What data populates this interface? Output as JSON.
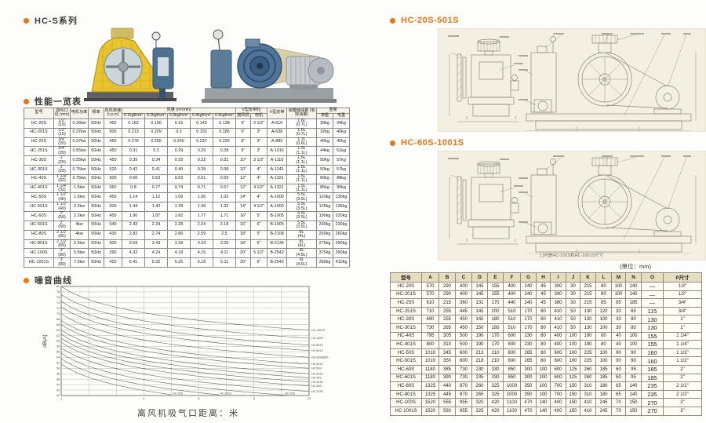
{
  "sections": {
    "series_title": "HC-S系列",
    "perf_title": "性能一览表",
    "noise_title": "噪音曲线",
    "drawing1_title": "HC-20S-501S",
    "drawing2_title": "HC-60S-1001S",
    "drawing2_caption": "[ ]内是HC-100S和HC-1001S尺寸",
    "unit_note": "(单位：mm)"
  },
  "perf_table": {
    "headers": {
      "model": "型号",
      "port": "排风口径 (mm)",
      "power": "电机功率",
      "freq": "频率",
      "speed": "风机转速 (r.p.m)",
      "flow_group": "风量 (m³/min)",
      "pressures": [
        "0.1kgf/cm²",
        "0.2kgf/cm²",
        "0.3kgf/cm²",
        "0.4kgf/cm²",
        "0.5kgf/cm²"
      ],
      "pulley_group": "V型皮带轮",
      "pulley_blower": "鼓风机",
      "pulley_motor": "电机",
      "belt": "V型皮带",
      "oil": "油箱储油量 (有效油量)",
      "weight_group": "重量",
      "net": "净重",
      "gross": "毛重"
    },
    "rows": [
      {
        "model": "HC-20S",
        "port_in": "1/2\"",
        "port_mm": "(15)",
        "power": "0.25kw",
        "freq": "50Hz",
        "speed": "450",
        "flow": [
          "0.162",
          "0.156",
          "0.15",
          "0.143",
          "0.138"
        ],
        "pulley_blower": "6\"",
        "pulley_motor": "2 1/2\"",
        "belt": "A-610",
        "oil_total": "1.6L",
        "oil_effective": "(0.7L)",
        "net": "30kg",
        "gross": "34kg"
      },
      {
        "model": "HC-201S",
        "port_in": "1/2\"",
        "port_mm": "(15)",
        "power": "0.37kw",
        "freq": "50Hz",
        "speed": "600",
        "flow": [
          "0.213",
          "0.209",
          "0.2",
          "0.193",
          "0.185"
        ],
        "pulley_blower": "6\"",
        "pulley_motor": "3\"",
        "belt": "A-638",
        "oil_total": "1.6L",
        "oil_effective": "(0.7L)",
        "net": "32kg",
        "gross": "40kg"
      },
      {
        "model": "HC-25S",
        "port_in": "3/4\"",
        "port_mm": "(20)",
        "power": "0.37kw",
        "freq": "50Hz",
        "speed": "450",
        "flow": [
          "0.278",
          "0.265",
          "0.250",
          "0.237",
          "0.225"
        ],
        "pulley_blower": "8\"",
        "pulley_motor": "3\"",
        "belt": "A-889",
        "oil_total": "1.2L",
        "oil_effective": "(0.6L)",
        "net": "40kg",
        "gross": "45kg"
      },
      {
        "model": "HC-251S",
        "port_in": "3/4\"",
        "port_mm": "(20)",
        "power": "0.55kw",
        "freq": "50Hz",
        "speed": "450",
        "flow": [
          "0.31",
          "0.3",
          "0.29",
          "0.29",
          "0.28"
        ],
        "pulley_blower": "8\"",
        "pulley_motor": "3\"",
        "belt": "A-1016",
        "oil_total": "1.5L",
        "oil_effective": "(1.1L)",
        "net": "44kg",
        "gross": "51kg"
      },
      {
        "model": "HC-30S",
        "port_in": "1\"",
        "port_mm": "(25)",
        "power": "0.55kw",
        "freq": "50Hz",
        "speed": "450",
        "flow": [
          "0.35",
          "0.34",
          "0.33",
          "0.32",
          "0.31"
        ],
        "pulley_blower": "10\"",
        "pulley_motor": "3 1/2\"",
        "belt": "A-1118",
        "oil_total": "1.5L",
        "oil_effective": "(1.1L)",
        "net": "50kg",
        "gross": "57kg"
      },
      {
        "model": "HC-301S",
        "port_in": "1\"",
        "port_mm": "(25)",
        "power": "0.75kw",
        "freq": "50Hz",
        "speed": "520",
        "flow": [
          "0.42",
          "0.41",
          "0.40",
          "0.39",
          "0.38"
        ],
        "pulley_blower": "10\"",
        "pulley_motor": "4\"",
        "belt": "A-1143",
        "oil_total": "1.5L",
        "oil_effective": "(1.1L)",
        "net": "50kg",
        "gross": "57kg"
      },
      {
        "model": "HC-40S",
        "port_in": "1 1/4\"",
        "port_mm": "(32)",
        "power": "0.75kw",
        "freq": "50Hz",
        "speed": "500",
        "flow": [
          "0.66",
          "0.63",
          "0.63",
          "0.61",
          "0.59"
        ],
        "pulley_blower": "12\"",
        "pulley_motor": "4\"",
        "belt": "A-1321",
        "oil_total": "1.5L",
        "oil_effective": "(1.1L)",
        "net": "80kg",
        "gross": "88kg"
      },
      {
        "model": "HC-401S",
        "port_in": "1 1/4\"",
        "port_mm": "(32)",
        "power": "1.5kw",
        "freq": "50Hz",
        "speed": "560",
        "flow": [
          "0.8",
          "0.77",
          "0.74",
          "0.71",
          "0.67"
        ],
        "pulley_blower": "12\"",
        "pulley_motor": "4 1/2\"",
        "belt": "A-1321",
        "oil_total": "1.5L",
        "oil_effective": "(1.1L)",
        "net": "85kg",
        "gross": "95kg"
      },
      {
        "model": "HC-50S",
        "port_in": "1 1/2\"",
        "port_mm": "(40)",
        "power": "1.5kw",
        "freq": "50Hz",
        "speed": "450",
        "flow": [
          "1.14",
          "1.12",
          "1.09",
          "1.06",
          "1.02"
        ],
        "pulley_blower": "14\"",
        "pulley_motor": "4\"",
        "belt": "A-1600",
        "oil_total": "5.5L",
        "oil_effective": "(3.5L)",
        "net": "120kg",
        "gross": "130kg"
      },
      {
        "model": "HC-501S",
        "port_in": "1 1/2\"",
        "port_mm": "(40)",
        "power": "2.2kw",
        "freq": "50Hz",
        "speed": "500",
        "flow": [
          "1.44",
          "1.42",
          "1.39",
          "1.36",
          "1.32"
        ],
        "pulley_blower": "14\"",
        "pulley_motor": "4 1/2\"",
        "belt": "A-1600",
        "oil_total": "5.5L",
        "oil_effective": "(3.5L)",
        "net": "125kg",
        "gross": "135kg"
      },
      {
        "model": "HC-60S",
        "port_in": "2\"",
        "port_mm": "(50)",
        "power": "2.2kw",
        "freq": "50Hz",
        "speed": "450",
        "flow": [
          "1.90",
          "1.87",
          "1.82",
          "1.77",
          "1.71"
        ],
        "pulley_blower": "16\"",
        "pulley_motor": "5\"",
        "belt": "B-1905",
        "oil_total": "5.5L",
        "oil_effective": "(3.5L)",
        "net": "190kg",
        "gross": "220kg"
      },
      {
        "model": "HC-601S",
        "port_in": "2\"",
        "port_mm": "(50)",
        "power": "4kw",
        "freq": "50Hz",
        "speed": "540",
        "flow": [
          "2.43",
          "2.34",
          "2.28",
          "2.24",
          "2.18"
        ],
        "pulley_blower": "16\"",
        "pulley_motor": "6\"",
        "belt": "B-1905",
        "oil_total": "5.5L",
        "oil_effective": "(3.5L)",
        "net": "200kg",
        "gross": "230kg"
      },
      {
        "model": "HC-80S",
        "port_in": "2 1/2\"",
        "port_mm": "(65)",
        "power": "4kw",
        "freq": "50Hz",
        "speed": "430",
        "flow": [
          "2.82",
          "2.74",
          "2.66",
          "2.59",
          "2.5"
        ],
        "pulley_blower": "18\"",
        "pulley_motor": "5\"",
        "belt": "B-2108",
        "oil_total": "8L",
        "oil_effective": "(4L)",
        "net": "250kg",
        "gross": "260kg"
      },
      {
        "model": "HC-801S",
        "port_in": "2 1/2\"",
        "port_mm": "(65)",
        "power": "5.5kw",
        "freq": "50Hz",
        "speed": "500",
        "flow": [
          "3.53",
          "3.43",
          "3.39",
          "3.33",
          "3.29"
        ],
        "pulley_blower": "18\"",
        "pulley_motor": "6\"",
        "belt": "B-2134",
        "oil_total": "8L",
        "oil_effective": "(4L)",
        "net": "275kg",
        "gross": "290kg"
      },
      {
        "model": "HC-100S",
        "port_in": "3\"",
        "port_mm": "(80)",
        "power": "5.5kw",
        "freq": "50Hz",
        "speed": "390",
        "flow": [
          "4.32",
          "4.24",
          "4.18",
          "4.15",
          "4.11"
        ],
        "pulley_blower": "20\"",
        "pulley_motor": "5 1/2\"",
        "belt": "B-2542",
        "oil_total": "9L",
        "oil_effective": "(4.5L)",
        "net": "375kg",
        "gross": "390kg"
      },
      {
        "model": "HC-1001S",
        "port_in": "3\"",
        "port_mm": "(80)",
        "power": "7.5kw",
        "freq": "50Hz",
        "speed": "420",
        "flow": [
          "5.41",
          "5.32",
          "5.25",
          "5.18",
          "5.11"
        ],
        "pulley_blower": "20\"",
        "pulley_motor": "6\"",
        "belt": "B-2542",
        "oil_total": "9L",
        "oil_effective": "(4.5L)",
        "net": "390kg",
        "gross": "410kg"
      }
    ]
  },
  "chart_data": {
    "type": "line",
    "title": "噪音曲线",
    "xlabel": "离风机吸气口距离：米",
    "ylabel": "dB(A)",
    "xlim": [
      1,
      10
    ],
    "ylim": [
      40,
      80
    ],
    "y_tick_step": 2,
    "x_tick_labels": [
      "1",
      "4",
      "6",
      "8",
      "10"
    ],
    "grid": true,
    "legend_position": "right-edge-and-bottom",
    "series_note": "dB(A) noise level vs distance from suction port in meters; values decay ~16 dB per decade",
    "series": [
      {
        "name": "HC-1001S",
        "db_at_1m": 80.0,
        "db_at_10m": 64.0,
        "label": "right"
      },
      {
        "name": "HC-100S",
        "db_at_1m": 77.0,
        "db_at_10m": 61.0,
        "label": "right"
      },
      {
        "name": "HC-801S",
        "db_at_1m": 74.5,
        "db_at_10m": 58.5,
        "label": "right"
      },
      {
        "name": "HC-601S",
        "db_at_1m": 72.5,
        "db_at_10m": 56.5,
        "label": "right"
      },
      {
        "name": "HC-60S&80S",
        "db_at_1m": 70.0,
        "db_at_10m": 54.0,
        "label": "right"
      },
      {
        "name": "HC-501S",
        "db_at_1m": 67.5,
        "db_at_10m": 51.5,
        "label": "right"
      },
      {
        "name": "HC-50S",
        "db_at_1m": 66.0,
        "db_at_10m": 50.0,
        "label": "right"
      },
      {
        "name": "HC-401S",
        "db_at_1m": 64.0,
        "db_at_10m": 48.0,
        "label": "right"
      },
      {
        "name": "HC-40S",
        "db_at_1m": 62.5,
        "db_at_10m": 46.5,
        "label": "right"
      },
      {
        "name": "HC-301S",
        "db_at_1m": 61.0,
        "db_at_10m": 45.0,
        "label": "right"
      },
      {
        "name": "HC-30S",
        "db_at_1m": 59.5,
        "db_at_10m": 43.5,
        "label": "right"
      },
      {
        "name": "HC-251S",
        "db_at_1m": 57.5,
        "db_at_10m": 41.5,
        "label": "right"
      },
      {
        "name": "HC-25S",
        "db_at_1m": 55.5,
        "db_at_10m": 39.5,
        "label": "bottom"
      },
      {
        "name": "HC-201S",
        "db_at_1m": 53.5,
        "db_at_10m": 37.5,
        "label": "bottom"
      },
      {
        "name": "HC-20S",
        "db_at_1m": 51.5,
        "db_at_10m": 35.5,
        "label": "bottom"
      }
    ]
  },
  "dims_table": {
    "headers": [
      "型号",
      "A",
      "B",
      "C",
      "D",
      "E",
      "F",
      "G",
      "H",
      "I",
      "J",
      "K",
      "L",
      "M",
      "N",
      "O",
      "P尺寸"
    ],
    "rows": [
      [
        "HC-20S",
        "570",
        "290",
        "400",
        "145",
        "155",
        "400",
        "240",
        "45",
        "300",
        "30",
        "215",
        "80",
        "100",
        "140",
        "—",
        "1/2\""
      ],
      [
        "HC-201S",
        "570",
        "290",
        "400",
        "145",
        "155",
        "400",
        "240",
        "45",
        "300",
        "30",
        "215",
        "80",
        "100",
        "140",
        "—",
        "1/2\""
      ],
      [
        "HC-25S",
        "610",
        "215",
        "360",
        "131",
        "170",
        "440",
        "240",
        "45",
        "380",
        "30",
        "215",
        "85",
        "85",
        "185",
        "—",
        "3/4\""
      ],
      [
        "HC-251S",
        "710",
        "255",
        "445",
        "145",
        "200",
        "510",
        "170",
        "80",
        "410",
        "50",
        "130",
        "120",
        "30",
        "65",
        "115",
        "3/4\""
      ],
      [
        "HC-30S",
        "690",
        "255",
        "450",
        "145",
        "180",
        "510",
        "170",
        "80",
        "410",
        "50",
        "130",
        "100",
        "30",
        "80",
        "130",
        "1\""
      ],
      [
        "HC-301S",
        "730",
        "265",
        "450",
        "150",
        "180",
        "510",
        "170",
        "80",
        "410",
        "50",
        "130",
        "100",
        "30",
        "80",
        "130",
        "1\""
      ],
      [
        "HC-40S",
        "795",
        "305",
        "500",
        "190",
        "170",
        "600",
        "230",
        "80",
        "400",
        "100",
        "190",
        "80",
        "40",
        "100",
        "155",
        "1 1/4\""
      ],
      [
        "HC-401S",
        "800",
        "310",
        "500",
        "190",
        "170",
        "600",
        "230",
        "80",
        "400",
        "100",
        "190",
        "80",
        "40",
        "100",
        "155",
        "1 1/4\""
      ],
      [
        "HC-50S",
        "1010",
        "345",
        "600",
        "213",
        "210",
        "800",
        "265",
        "80",
        "600",
        "100",
        "225",
        "100",
        "90",
        "90",
        "160",
        "1 1/2\""
      ],
      [
        "HC-501S",
        "1010",
        "350",
        "600",
        "218",
        "210",
        "800",
        "265",
        "80",
        "600",
        "100",
        "225",
        "100",
        "90",
        "90",
        "160",
        "1 1/2\""
      ],
      [
        "HC-60S",
        "1180",
        "385",
        "730",
        "230",
        "330",
        "850",
        "300",
        "100",
        "600",
        "125",
        "260",
        "185",
        "60",
        "95",
        "185",
        "2\""
      ],
      [
        "HC-601S",
        "1180",
        "390",
        "730",
        "235",
        "330",
        "850",
        "300",
        "100",
        "600",
        "125",
        "260",
        "185",
        "60",
        "95",
        "185",
        "2\""
      ],
      [
        "HC-80S",
        "1325",
        "440",
        "870",
        "260",
        "325",
        "1000",
        "350",
        "100",
        "700",
        "150",
        "310",
        "180",
        "65",
        "140",
        "235",
        "2 1/2\""
      ],
      [
        "HC-801S",
        "1325",
        "445",
        "870",
        "265",
        "325",
        "1000",
        "350",
        "100",
        "700",
        "150",
        "310",
        "180",
        "65",
        "140",
        "235",
        "2 1/2\""
      ],
      [
        "HC-100S",
        "1520",
        "555",
        "955",
        "320",
        "420",
        "1100",
        "470",
        "140",
        "400",
        "150",
        "410",
        "245",
        "70",
        "150",
        "270",
        "3\""
      ],
      [
        "HC-1001S",
        "1520",
        "560",
        "955",
        "325",
        "420",
        "1100",
        "470",
        "140",
        "400",
        "150",
        "410",
        "245",
        "70",
        "150",
        "270",
        "3\""
      ]
    ]
  }
}
